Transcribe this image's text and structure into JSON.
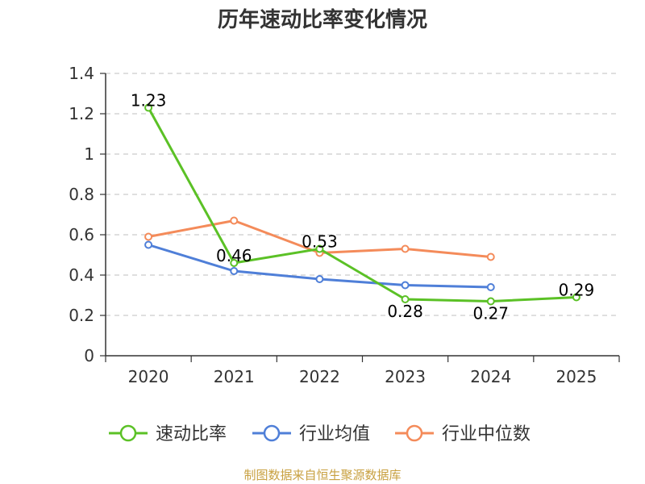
{
  "chart_data": {
    "type": "line",
    "title": "历年速动比率变化情况",
    "categories": [
      "2020",
      "2021",
      "2022",
      "2023",
      "2024",
      "2025"
    ],
    "ylim": [
      0,
      1.4
    ],
    "yticks": [
      0,
      0.2,
      0.4,
      0.6,
      0.8,
      1,
      1.2,
      1.4
    ],
    "ytick_labels": [
      "0",
      "0.2",
      "0.4",
      "0.6",
      "0.8",
      "1",
      "1.2",
      "1.4"
    ],
    "grid": true,
    "legend_position": "bottom",
    "series": [
      {
        "name": "速动比率",
        "color": "#5bc126",
        "values": [
          1.23,
          0.46,
          0.53,
          0.28,
          0.27,
          0.29
        ],
        "labels": [
          "1.23",
          "0.46",
          "0.53",
          "0.28",
          "0.27",
          "0.29"
        ]
      },
      {
        "name": "行业均值",
        "color": "#4f7fd8",
        "values": [
          0.55,
          0.42,
          0.38,
          0.35,
          0.34,
          null
        ]
      },
      {
        "name": "行业中位数",
        "color": "#f48b5a",
        "values": [
          0.59,
          0.67,
          0.51,
          0.53,
          0.49,
          null
        ]
      }
    ]
  },
  "source": "制图数据来自恒生聚源数据库"
}
